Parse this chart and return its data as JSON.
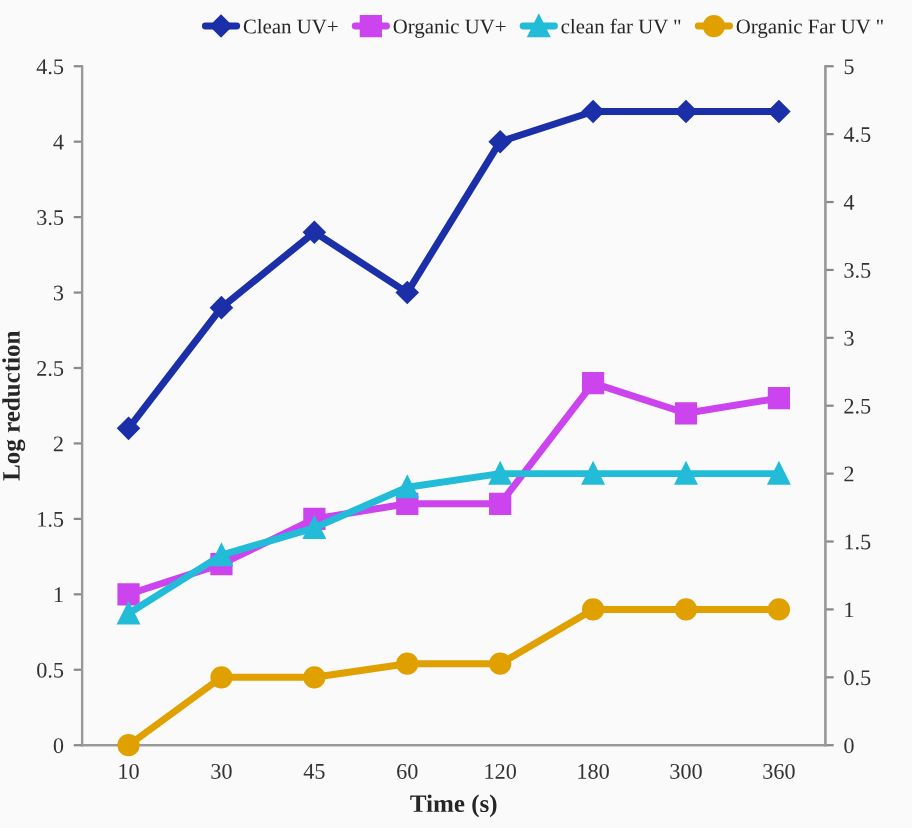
{
  "chart_data": {
    "type": "line",
    "xlabel": "Time (s)",
    "ylabel": "Log reduction",
    "categories": [
      "10",
      "30",
      "45",
      "60",
      "120",
      "180",
      "300",
      "360"
    ],
    "series": [
      {
        "name": "Clean UV+",
        "color": "#1a2fa8",
        "marker": "diamond",
        "values": [
          2.1,
          2.9,
          3.4,
          3.0,
          4.0,
          4.2,
          4.2,
          4.2
        ]
      },
      {
        "name": "Organic UV+",
        "color": "#cc44ee",
        "marker": "square",
        "values": [
          1.0,
          1.2,
          1.5,
          1.6,
          1.6,
          2.4,
          2.2,
          2.3
        ]
      },
      {
        "name": "clean far UV \"",
        "color": "#22bcd8",
        "marker": "triangle",
        "axis": "y2",
        "values": [
          0.97,
          1.4,
          1.6,
          1.9,
          2.0,
          2.0,
          2.0,
          2.0
        ]
      },
      {
        "name": "Organic Far UV \"",
        "color": "#e0a000",
        "marker": "circle",
        "axis": "y2",
        "values": [
          0,
          0.5,
          0.5,
          0.6,
          0.6,
          1.0,
          1.0,
          1.0
        ]
      }
    ],
    "ylim": [
      0,
      4.5
    ],
    "yticks": [
      0,
      0.5,
      1,
      1.5,
      2,
      2.5,
      3,
      3.5,
      4,
      4.5
    ],
    "y2lim": [
      0,
      5
    ],
    "y2ticks": [
      0,
      0.5,
      1,
      1.5,
      2,
      2.5,
      3,
      3.5,
      4,
      4.5,
      5
    ],
    "grid": false,
    "legend": "top",
    "line_style": "solid"
  }
}
